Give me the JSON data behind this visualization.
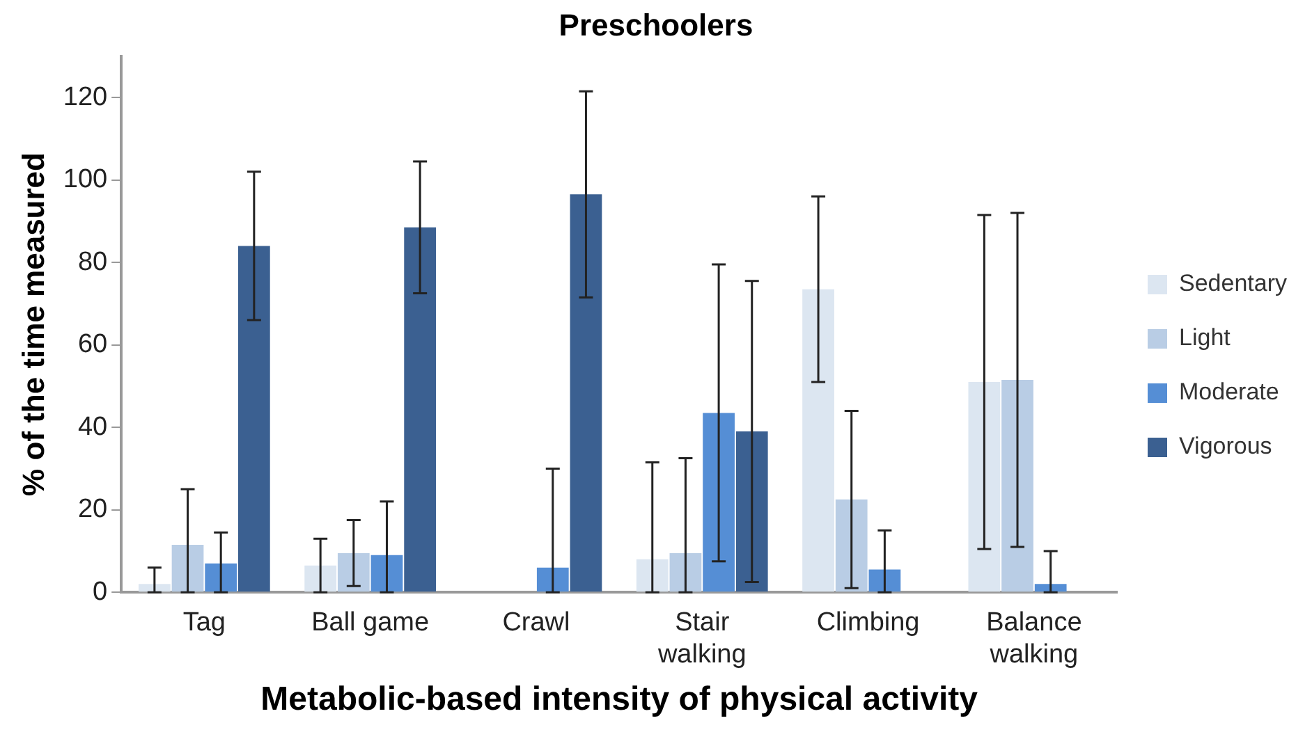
{
  "chart_data": {
    "type": "bar",
    "title": "Preschoolers",
    "xlabel": "Metabolic-based intensity of physical activity",
    "ylabel": "% of the time measured",
    "categories": [
      "Tag",
      "Ball game",
      "Crawl",
      "Stair walking",
      "Climbing",
      "Balance walking"
    ],
    "series": [
      {
        "name": "Sedentary",
        "color": "#dce6f1",
        "values": [
          2,
          6.5,
          0,
          8,
          73.5,
          51
        ],
        "errors": [
          [
            0,
            6
          ],
          6.5,
          null,
          [
            0,
            31.5
          ],
          22.5,
          40.5
        ]
      },
      {
        "name": "Light",
        "color": "#b9cde5",
        "values": [
          11.5,
          9.5,
          0,
          9.5,
          22.5,
          51.5
        ],
        "errors": [
          [
            0,
            25
          ],
          8,
          null,
          [
            0,
            32.5
          ],
          21.5,
          40.5
        ]
      },
      {
        "name": "Moderate",
        "color": "#558ed5",
        "values": [
          7,
          9,
          6,
          43.5,
          5.5,
          2
        ],
        "errors": [
          [
            0,
            14.5
          ],
          [
            0,
            22
          ],
          [
            0,
            30
          ],
          36,
          [
            0,
            15
          ],
          [
            0,
            10
          ]
        ]
      },
      {
        "name": "Vigorous",
        "color": "#3b6091",
        "values": [
          84,
          88.5,
          96.5,
          39,
          0,
          0
        ],
        "errors": [
          18,
          16,
          25,
          36.5,
          null,
          null
        ]
      }
    ],
    "ylim": [
      0,
      130
    ],
    "yticks": [
      0,
      20,
      40,
      60,
      80,
      100,
      120
    ],
    "grid": false,
    "legend": "right"
  }
}
